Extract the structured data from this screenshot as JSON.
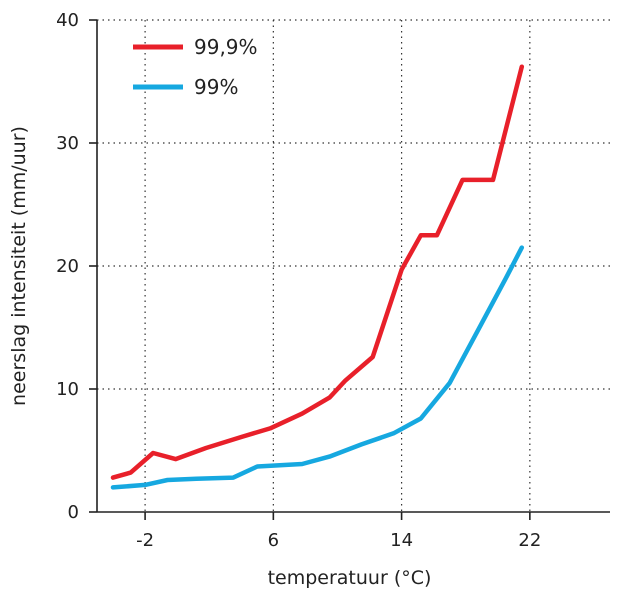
{
  "chart_data": {
    "type": "line",
    "xlabel": "temperatuur (°C)",
    "ylabel": "neerslag intensiteit (mm/uur)",
    "xlim": [
      -5,
      27
    ],
    "ylim": [
      0,
      40
    ],
    "x_ticks": [
      -2,
      6,
      14,
      22
    ],
    "x_tick_labels": [
      "-2",
      "6",
      "14",
      "22"
    ],
    "y_ticks": [
      0,
      10,
      20,
      30,
      40
    ],
    "y_tick_labels": [
      "0",
      "10",
      "20",
      "30",
      "40"
    ],
    "grid": true,
    "legend_position": "top-left",
    "series": [
      {
        "name": "99,9%",
        "color": "#e8202a",
        "x": [
          -4,
          -2.9,
          -1.5,
          -0.1,
          1.8,
          4,
          5.8,
          7.8,
          9.5,
          10.5,
          12.2,
          14,
          15.2,
          16.2,
          17.8,
          19.7,
          21.5
        ],
        "y": [
          2.8,
          3.2,
          4.8,
          4.3,
          5.2,
          6.1,
          6.8,
          8.0,
          9.3,
          10.7,
          12.6,
          19.7,
          22.5,
          22.5,
          27.0,
          27.0,
          36.2
        ]
      },
      {
        "name": "99%",
        "color": "#16a8e0",
        "x": [
          -4,
          -2,
          -0.6,
          1.2,
          3.5,
          5,
          7.8,
          9.5,
          11.5,
          13.5,
          15.2,
          17,
          18.9,
          20.5,
          21.5
        ],
        "y": [
          2.0,
          2.2,
          2.6,
          2.7,
          2.8,
          3.7,
          3.9,
          4.5,
          5.5,
          6.4,
          7.6,
          10.5,
          15.1,
          19.0,
          21.5
        ]
      }
    ]
  }
}
